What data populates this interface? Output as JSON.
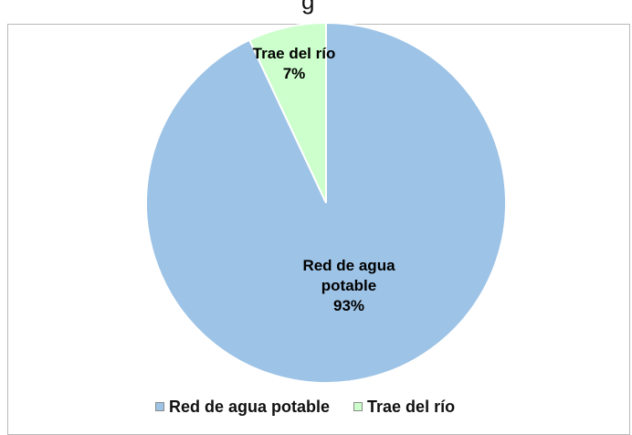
{
  "title_fragment": "g",
  "chart_data": {
    "type": "pie",
    "title": "",
    "slices": [
      {
        "label_line1": "Red de agua",
        "label_line2": "potable",
        "name": "Red de agua potable",
        "value": 93,
        "value_label": "93%",
        "color": "#9dc3e6"
      },
      {
        "label_line1": "Trae del río",
        "label_line2": "",
        "name": "Trae del río",
        "value": 7,
        "value_label": "7%",
        "color": "#ccffcc"
      }
    ],
    "legend_position": "bottom"
  }
}
